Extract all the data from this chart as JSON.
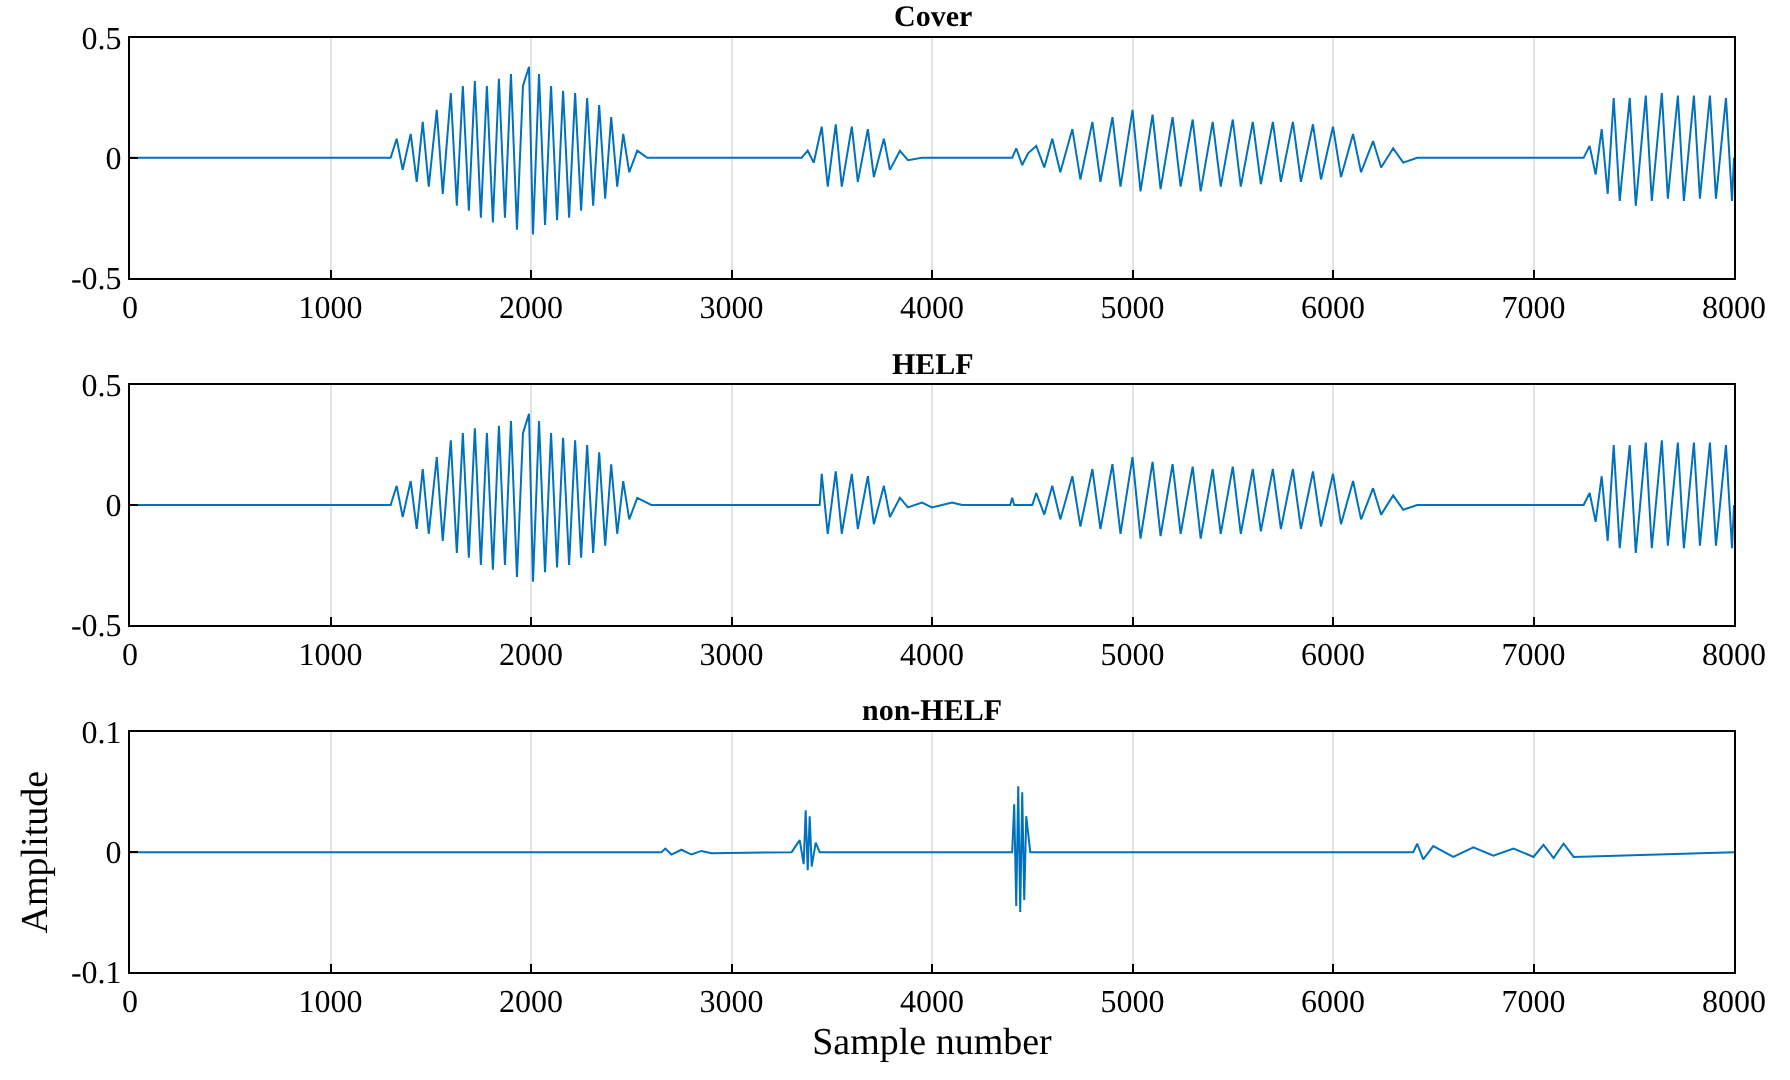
{
  "chart_data": [
    {
      "type": "line",
      "title": "Cover",
      "color": "#0072bd",
      "xlim": [
        0,
        8000
      ],
      "ylim": [
        -0.5,
        0.5
      ],
      "xticks": [
        0,
        1000,
        2000,
        3000,
        4000,
        5000,
        6000,
        7000,
        8000
      ],
      "yticks": [
        -0.5,
        0,
        0.5
      ],
      "grid": "x",
      "x": [
        0,
        1300,
        1330,
        1360,
        1400,
        1430,
        1460,
        1490,
        1530,
        1560,
        1600,
        1630,
        1660,
        1690,
        1720,
        1750,
        1780,
        1810,
        1840,
        1870,
        1900,
        1930,
        1960,
        1990,
        2010,
        2040,
        2070,
        2100,
        2130,
        2160,
        2190,
        2220,
        2250,
        2280,
        2310,
        2340,
        2370,
        2400,
        2430,
        2460,
        2490,
        2530,
        2580,
        3350,
        3380,
        3410,
        3450,
        3480,
        3520,
        3550,
        3600,
        3630,
        3680,
        3710,
        3760,
        3790,
        3840,
        3880,
        3950,
        4400,
        4420,
        4450,
        4480,
        4520,
        4560,
        4600,
        4640,
        4700,
        4740,
        4800,
        4840,
        4900,
        4940,
        5000,
        5040,
        5100,
        5140,
        5200,
        5240,
        5300,
        5340,
        5400,
        5440,
        5500,
        5540,
        5600,
        5640,
        5700,
        5740,
        5800,
        5840,
        5900,
        5940,
        6000,
        6040,
        6100,
        6140,
        6200,
        6240,
        6300,
        6350,
        6420,
        7250,
        7280,
        7310,
        7340,
        7370,
        7400,
        7430,
        7480,
        7510,
        7560,
        7590,
        7640,
        7670,
        7720,
        7750,
        7800,
        7830,
        7880,
        7910,
        7960,
        7990,
        8000
      ],
      "values": [
        0,
        0,
        0.08,
        -0.05,
        0.1,
        -0.1,
        0.15,
        -0.12,
        0.2,
        -0.15,
        0.27,
        -0.2,
        0.3,
        -0.22,
        0.32,
        -0.25,
        0.3,
        -0.27,
        0.33,
        -0.25,
        0.35,
        -0.3,
        0.3,
        0.38,
        -0.32,
        0.35,
        -0.28,
        0.3,
        -0.26,
        0.28,
        -0.25,
        0.27,
        -0.22,
        0.25,
        -0.2,
        0.22,
        -0.17,
        0.17,
        -0.12,
        0.1,
        -0.06,
        0.03,
        0,
        0,
        0.03,
        -0.02,
        0.13,
        -0.12,
        0.14,
        -0.12,
        0.13,
        -0.1,
        0.12,
        -0.08,
        0.08,
        -0.05,
        0.03,
        -0.01,
        0,
        0,
        0.04,
        -0.03,
        0.02,
        0.05,
        -0.04,
        0.08,
        -0.06,
        0.12,
        -0.09,
        0.15,
        -0.1,
        0.17,
        -0.12,
        0.2,
        -0.14,
        0.18,
        -0.13,
        0.17,
        -0.12,
        0.16,
        -0.14,
        0.15,
        -0.12,
        0.16,
        -0.12,
        0.15,
        -0.11,
        0.15,
        -0.1,
        0.15,
        -0.1,
        0.14,
        -0.09,
        0.13,
        -0.08,
        0.1,
        -0.06,
        0.07,
        -0.04,
        0.04,
        -0.02,
        0,
        0,
        0.05,
        -0.07,
        0.12,
        -0.15,
        0.25,
        -0.18,
        0.25,
        -0.2,
        0.26,
        -0.18,
        0.27,
        -0.17,
        0.26,
        -0.18,
        0.26,
        -0.17,
        0.26,
        -0.17,
        0.25,
        -0.18,
        0
      ]
    },
    {
      "type": "line",
      "title": "HELF",
      "color": "#0072bd",
      "xlim": [
        0,
        8000
      ],
      "ylim": [
        -0.5,
        0.5
      ],
      "xticks": [
        0,
        1000,
        2000,
        3000,
        4000,
        5000,
        6000,
        7000,
        8000
      ],
      "yticks": [
        -0.5,
        0,
        0.5
      ],
      "grid": "x",
      "x": [
        0,
        1300,
        1330,
        1360,
        1400,
        1430,
        1460,
        1490,
        1530,
        1560,
        1600,
        1630,
        1660,
        1690,
        1720,
        1750,
        1780,
        1810,
        1840,
        1870,
        1900,
        1930,
        1960,
        1990,
        2010,
        2040,
        2070,
        2100,
        2130,
        2160,
        2190,
        2220,
        2250,
        2280,
        2310,
        2340,
        2370,
        2400,
        2430,
        2460,
        2490,
        2530,
        2600,
        3440,
        3450,
        3480,
        3520,
        3550,
        3600,
        3630,
        3680,
        3710,
        3760,
        3790,
        3840,
        3880,
        3950,
        4000,
        4100,
        4150,
        4390,
        4400,
        4410,
        4500,
        4520,
        4560,
        4600,
        4640,
        4700,
        4740,
        4800,
        4840,
        4900,
        4940,
        5000,
        5040,
        5100,
        5140,
        5200,
        5240,
        5300,
        5340,
        5400,
        5440,
        5500,
        5540,
        5600,
        5640,
        5700,
        5740,
        5800,
        5840,
        5900,
        5940,
        6000,
        6040,
        6100,
        6140,
        6200,
        6240,
        6300,
        6350,
        6420,
        7250,
        7280,
        7310,
        7340,
        7370,
        7400,
        7430,
        7480,
        7510,
        7560,
        7590,
        7640,
        7670,
        7720,
        7750,
        7800,
        7830,
        7880,
        7910,
        7960,
        7990,
        8000
      ],
      "values": [
        0,
        0,
        0.08,
        -0.05,
        0.1,
        -0.1,
        0.15,
        -0.12,
        0.2,
        -0.15,
        0.27,
        -0.2,
        0.3,
        -0.22,
        0.32,
        -0.25,
        0.3,
        -0.27,
        0.33,
        -0.25,
        0.35,
        -0.3,
        0.3,
        0.38,
        -0.32,
        0.35,
        -0.28,
        0.3,
        -0.26,
        0.28,
        -0.25,
        0.27,
        -0.22,
        0.25,
        -0.2,
        0.22,
        -0.17,
        0.17,
        -0.12,
        0.1,
        -0.06,
        0.03,
        0,
        0,
        0.13,
        -0.12,
        0.14,
        -0.12,
        0.13,
        -0.1,
        0.12,
        -0.08,
        0.08,
        -0.05,
        0.03,
        -0.01,
        0.01,
        -0.01,
        0.01,
        0,
        0,
        0.03,
        0,
        0,
        0.05,
        -0.04,
        0.08,
        -0.06,
        0.12,
        -0.09,
        0.15,
        -0.1,
        0.17,
        -0.12,
        0.2,
        -0.14,
        0.18,
        -0.13,
        0.17,
        -0.12,
        0.16,
        -0.14,
        0.15,
        -0.12,
        0.16,
        -0.12,
        0.15,
        -0.11,
        0.15,
        -0.1,
        0.15,
        -0.1,
        0.14,
        -0.09,
        0.13,
        -0.08,
        0.1,
        -0.06,
        0.07,
        -0.04,
        0.04,
        -0.02,
        0,
        0,
        0.05,
        -0.07,
        0.12,
        -0.15,
        0.25,
        -0.18,
        0.25,
        -0.2,
        0.26,
        -0.18,
        0.27,
        -0.17,
        0.26,
        -0.18,
        0.26,
        -0.17,
        0.26,
        -0.17,
        0.25,
        -0.18,
        0
      ]
    },
    {
      "type": "line",
      "title": "non-HELF",
      "xlabel": "Sample number",
      "ylabel": "Amplitude",
      "color": "#0072bd",
      "xlim": [
        0,
        8000
      ],
      "ylim": [
        -0.1,
        0.1
      ],
      "xticks": [
        0,
        1000,
        2000,
        3000,
        4000,
        5000,
        6000,
        7000,
        8000
      ],
      "yticks": [
        -0.1,
        0,
        0.1
      ],
      "grid": "x",
      "x": [
        0,
        2650,
        2670,
        2700,
        2750,
        2800,
        2850,
        2900,
        3300,
        3340,
        3360,
        3370,
        3380,
        3390,
        3400,
        3420,
        3440,
        4400,
        4410,
        4420,
        4430,
        4440,
        4450,
        4460,
        4470,
        4490,
        6400,
        6420,
        6450,
        6500,
        6600,
        6700,
        6800,
        6900,
        7000,
        7050,
        7100,
        7150,
        7200,
        8000
      ],
      "values": [
        0,
        0,
        0.003,
        -0.002,
        0.002,
        -0.002,
        0.001,
        -0.001,
        0,
        0.01,
        -0.01,
        0.035,
        -0.015,
        0.03,
        -0.012,
        0.008,
        0,
        0,
        0.04,
        -0.045,
        0.055,
        -0.05,
        0.05,
        -0.04,
        0.03,
        0,
        0,
        0.007,
        -0.006,
        0.005,
        -0.004,
        0.004,
        -0.003,
        0.003,
        -0.004,
        0.006,
        -0.005,
        0.007,
        -0.004,
        0
      ]
    }
  ]
}
